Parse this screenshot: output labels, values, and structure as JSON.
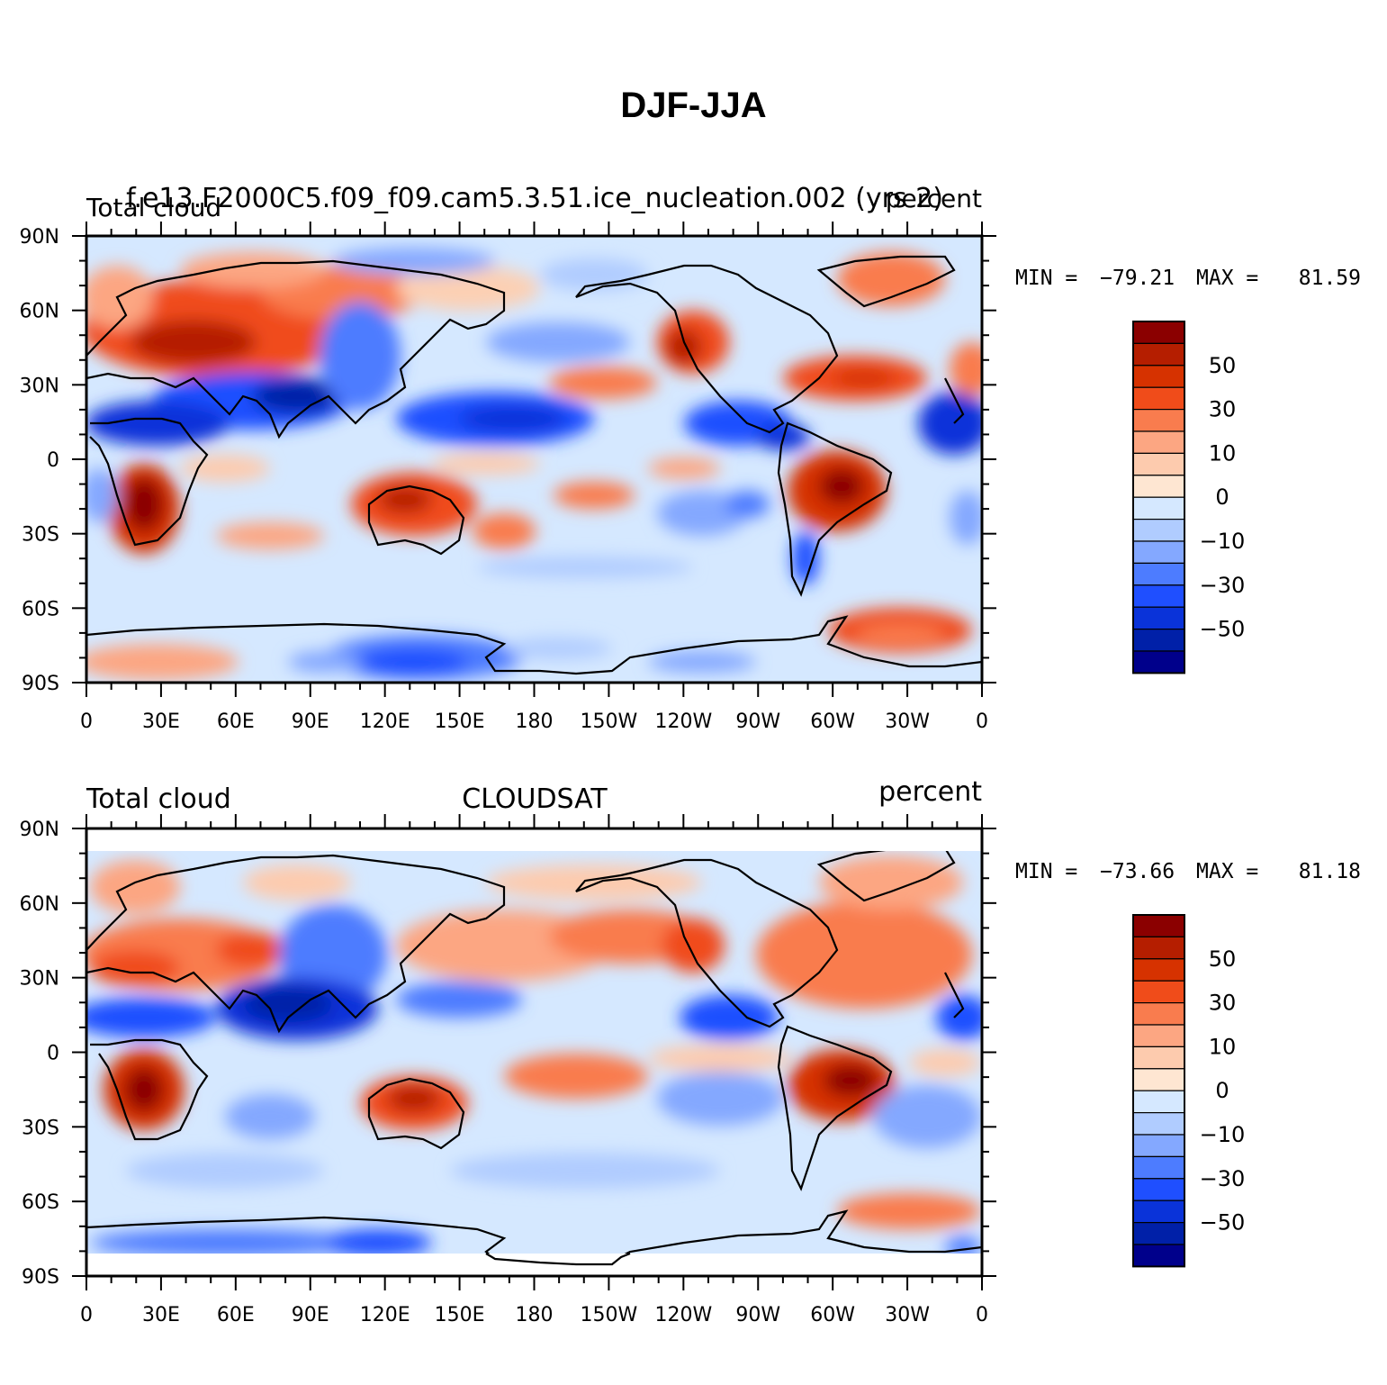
{
  "title": "DJF-JJA",
  "panels": [
    {
      "id": "top",
      "left_string": "Total cloud",
      "center_string": "f.e13.F2000C5.f09_f09.cam5.3.51.ice_nucleation.002 (yrs 2)",
      "right_string": "percent",
      "min_label": "MIN =",
      "min_value": "−79.21",
      "max_label": "MAX =",
      "max_value": "81.59",
      "y_ticks": [
        "90N",
        "60N",
        "30N",
        "0",
        "30S",
        "60S",
        "90S"
      ],
      "x_ticks": [
        "0",
        "30E",
        "60E",
        "90E",
        "120E",
        "150E",
        "180",
        "150W",
        "120W",
        "90W",
        "60W",
        "30W",
        "0"
      ],
      "colorbar_labels": [
        "50",
        "30",
        "10",
        "0",
        "−10",
        "−30",
        "−50"
      ],
      "lat_coverage": [
        -90,
        90
      ]
    },
    {
      "id": "bottom",
      "left_string": "Total cloud",
      "center_string": "CLOUDSAT",
      "right_string": "percent",
      "min_label": "MIN =",
      "min_value": "−73.66",
      "max_label": "MAX =",
      "max_value": "81.18",
      "y_ticks": [
        "90N",
        "60N",
        "30N",
        "0",
        "30S",
        "60S",
        "90S"
      ],
      "x_ticks": [
        "0",
        "30E",
        "60E",
        "90E",
        "120E",
        "150E",
        "180",
        "150W",
        "120W",
        "90W",
        "60W",
        "30W",
        "0"
      ],
      "colorbar_labels": [
        "50",
        "30",
        "10",
        "0",
        "−10",
        "−30",
        "−50"
      ],
      "lat_coverage": [
        -82,
        82
      ]
    }
  ],
  "colors": {
    "colorbar_top_to_bottom": [
      "#8b0000",
      "#b51e00",
      "#d63200",
      "#f04c1a",
      "#f97c4e",
      "#fca682",
      "#fdcbae",
      "#fee6d2",
      "#d5e8ff",
      "#b0ccff",
      "#84a8ff",
      "#4d7cff",
      "#1f4fff",
      "#0a33d9",
      "#0020a8",
      "#00008b"
    ]
  }
}
